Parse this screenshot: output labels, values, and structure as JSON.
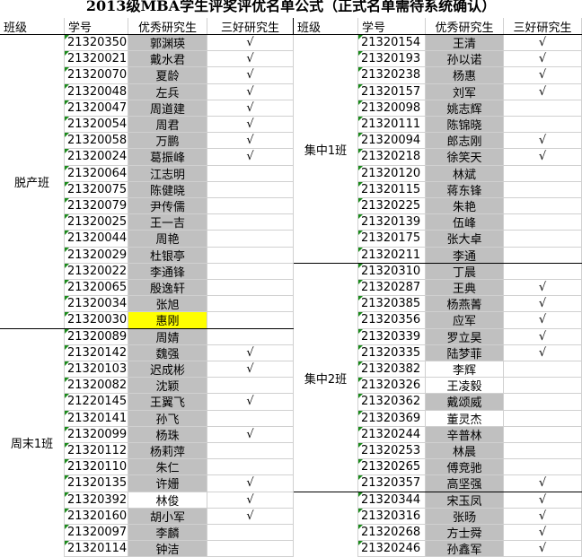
{
  "header": {
    "title": "2013级MBA学生评奖评优名单公式（正式名单需待系统确认）",
    "columns": [
      "班级",
      "学号",
      "优秀研究生",
      "三好研究生",
      "班级",
      "学号",
      "优秀研究生",
      "三好研究生"
    ]
  },
  "sides": [
    {
      "groups": [
        {
          "class": "脱产班",
          "rows": [
            {
              "id": "21320350",
              "name": "郭渊瑛",
              "mark": "√"
            },
            {
              "id": "21320021",
              "name": "戴水君",
              "mark": "√"
            },
            {
              "id": "21320070",
              "name": "夏龄",
              "mark": "√"
            },
            {
              "id": "21320048",
              "name": "左兵",
              "mark": "√"
            },
            {
              "id": "21320047",
              "name": "周道建",
              "mark": "√"
            },
            {
              "id": "21320054",
              "name": "周君",
              "mark": "√"
            },
            {
              "id": "21320058",
              "name": "万鹏",
              "mark": "√"
            },
            {
              "id": "21320024",
              "name": "葛振峰",
              "mark": "√"
            },
            {
              "id": "21320064",
              "name": "江志明"
            },
            {
              "id": "21320075",
              "name": "陈健晓"
            },
            {
              "id": "21320079",
              "name": "尹传儒"
            },
            {
              "id": "21320025",
              "name": "王一吉"
            },
            {
              "id": "21320044",
              "name": "周艳"
            },
            {
              "id": "21320029",
              "name": "杜银亭"
            },
            {
              "id": "21320022",
              "name": "李通锋"
            },
            {
              "id": "21320065",
              "name": "殷逸轩"
            },
            {
              "id": "21320034",
              "name": "张旭"
            },
            {
              "id": "21320030",
              "name": "惠刚",
              "fill": "#ffff00"
            }
          ]
        },
        {
          "class": "周末1班",
          "rows": [
            {
              "id": "21320089",
              "name": "周婧"
            },
            {
              "id": "21320142",
              "name": "魏强",
              "mark": "√"
            },
            {
              "id": "21320103",
              "name": "迟成彬",
              "mark": "√"
            },
            {
              "id": "21320082",
              "name": "沈颖"
            },
            {
              "id": "21220145",
              "name": "王翼飞",
              "mark": "√"
            },
            {
              "id": "21320141",
              "name": "孙飞"
            },
            {
              "id": "21320099",
              "name": "杨珠",
              "mark": "√"
            },
            {
              "id": "21320112",
              "name": "杨莉萍"
            },
            {
              "id": "21320110",
              "name": "朱仁"
            },
            {
              "id": "21320135",
              "name": "许姗",
              "mark": "√"
            },
            {
              "id": "21320392",
              "name": "林俊",
              "mark": "√",
              "fill": "#ffffff"
            },
            {
              "id": "21320160",
              "name": "胡小军",
              "mark": "√"
            },
            {
              "id": "21320097",
              "name": "李麟"
            },
            {
              "id": "21320114",
              "name": "钟洁"
            }
          ]
        }
      ]
    },
    {
      "groups": [
        {
          "class": "集中1班",
          "rows": [
            {
              "id": "21320154",
              "name": "王清",
              "mark": "√"
            },
            {
              "id": "21320193",
              "name": "孙以诺",
              "mark": "√"
            },
            {
              "id": "21320238",
              "name": "杨惠",
              "mark": "√"
            },
            {
              "id": "21320157",
              "name": "刘军",
              "mark": "√"
            },
            {
              "id": "21320098",
              "name": "姚志辉"
            },
            {
              "id": "21320111",
              "name": "陈锦晓"
            },
            {
              "id": "21320094",
              "name": "郎志刚",
              "mark": "√"
            },
            {
              "id": "21320218",
              "name": "徐笑天",
              "mark": "√"
            },
            {
              "id": "21320120",
              "name": "林斌"
            },
            {
              "id": "21320115",
              "name": "蒋东锋"
            },
            {
              "id": "21320225",
              "name": "朱艳"
            },
            {
              "id": "21320139",
              "name": "伍峰"
            },
            {
              "id": "21320175",
              "name": "张大卓"
            },
            {
              "id": "21320211",
              "name": "李通"
            }
          ]
        },
        {
          "class": "集中2班",
          "rows": [
            {
              "id": "21320310",
              "name": "丁晨"
            },
            {
              "id": "21320287",
              "name": "王典",
              "mark": "√"
            },
            {
              "id": "21320385",
              "name": "杨燕菁",
              "mark": "√"
            },
            {
              "id": "21320356",
              "name": "应军",
              "mark": "√"
            },
            {
              "id": "21320339",
              "name": "罗立昊",
              "mark": "√"
            },
            {
              "id": "21320335",
              "name": "陆梦菲",
              "mark": "√"
            },
            {
              "id": "21320382",
              "name": "李辉",
              "fill": "#ffffff"
            },
            {
              "id": "21320326",
              "name": "王凌毅",
              "fill": "#ffffff"
            },
            {
              "id": "21320362",
              "name": "戴颂威"
            },
            {
              "id": "21320369",
              "name": "董灵杰",
              "fill": "#ffffff"
            },
            {
              "id": "21320244",
              "name": "辛普林"
            },
            {
              "id": "21320253",
              "name": "林晨"
            },
            {
              "id": "21320265",
              "name": "傅竞驰"
            },
            {
              "id": "21320357",
              "name": "高坚强",
              "mark": "√"
            }
          ]
        },
        {
          "rows": [
            {
              "id": "21320344",
              "name": "宋玉凤",
              "mark": "√"
            },
            {
              "id": "21320316",
              "name": "张旸",
              "mark": "√"
            },
            {
              "id": "21320268",
              "name": "方士舜",
              "mark": "√"
            },
            {
              "id": "21320246",
              "name": "孙鑫军",
              "mark": "√"
            }
          ]
        }
      ]
    }
  ]
}
